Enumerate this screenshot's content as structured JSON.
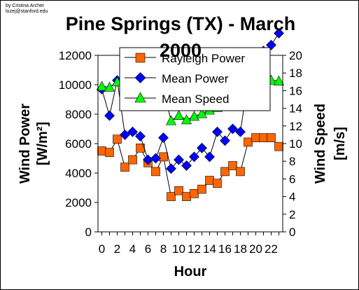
{
  "credit": {
    "line1": "by Cristina Archer",
    "line2": "lozej@stanford.edu"
  },
  "chart_data": {
    "type": "line",
    "title": "Pine Springs (TX) - March 2000",
    "title_line1": "Pine Springs (TX) - March",
    "title_line2": "2000",
    "xlabel": "Hour",
    "ylabel_left": "Wind Power",
    "ylabel_left_units": "[W/m²]",
    "ylabel_right": "Wind Speed",
    "ylabel_right_units": "[m/s]",
    "x": [
      0,
      1,
      2,
      3,
      4,
      5,
      6,
      7,
      8,
      9,
      10,
      11,
      12,
      13,
      14,
      15,
      16,
      17,
      18,
      19,
      20,
      21,
      22,
      23
    ],
    "x_tick_labels": [
      "0",
      "2",
      "4",
      "6",
      "8",
      "10",
      "12",
      "14",
      "16",
      "18",
      "20",
      "22"
    ],
    "x_tick_values": [
      0,
      2,
      4,
      6,
      8,
      10,
      12,
      14,
      16,
      18,
      20,
      22
    ],
    "ylim_left": [
      0,
      12000
    ],
    "ylim_right": [
      0,
      20
    ],
    "y_left_ticks": [
      "0",
      "2000",
      "4000",
      "6000",
      "8000",
      "10000",
      "12000"
    ],
    "y_right_ticks": [
      "0",
      "2",
      "4",
      "6",
      "8",
      "10",
      "12",
      "14",
      "16",
      "18",
      "20"
    ],
    "grid": false,
    "legend_position": "top-center",
    "series": [
      {
        "name": "Rayleigh Power",
        "axis": "left",
        "marker": "square",
        "color": "#ff6600",
        "values": [
          5500,
          5400,
          6300,
          4400,
          4900,
          5700,
          4700,
          4100,
          5100,
          2400,
          2800,
          2400,
          2600,
          2900,
          3500,
          3300,
          4100,
          4500,
          4100,
          6100,
          6400,
          6400,
          6400,
          5800
        ]
      },
      {
        "name": "Mean Power",
        "axis": "left",
        "marker": "diamond",
        "color": "#0000ff",
        "values": [
          9700,
          7900,
          10300,
          6600,
          6800,
          6500,
          4900,
          5000,
          6400,
          4300,
          4900,
          4500,
          5100,
          5700,
          5100,
          6800,
          6200,
          7000,
          6800,
          10300,
          11700,
          12300,
          12700,
          13500
        ]
      },
      {
        "name": "Mean Speed",
        "axis": "right",
        "marker": "triangle",
        "color": "#00ff00",
        "values": [
          16.5,
          16.4,
          17.0,
          17.8,
          17.5,
          17.5,
          17.2,
          16.4,
          16.0,
          12.6,
          13.2,
          12.7,
          13.1,
          13.4,
          13.8,
          14.1,
          15.2,
          16.0,
          16.5,
          17.1,
          17.6,
          17.5,
          17.2,
          17.1
        ]
      }
    ]
  }
}
